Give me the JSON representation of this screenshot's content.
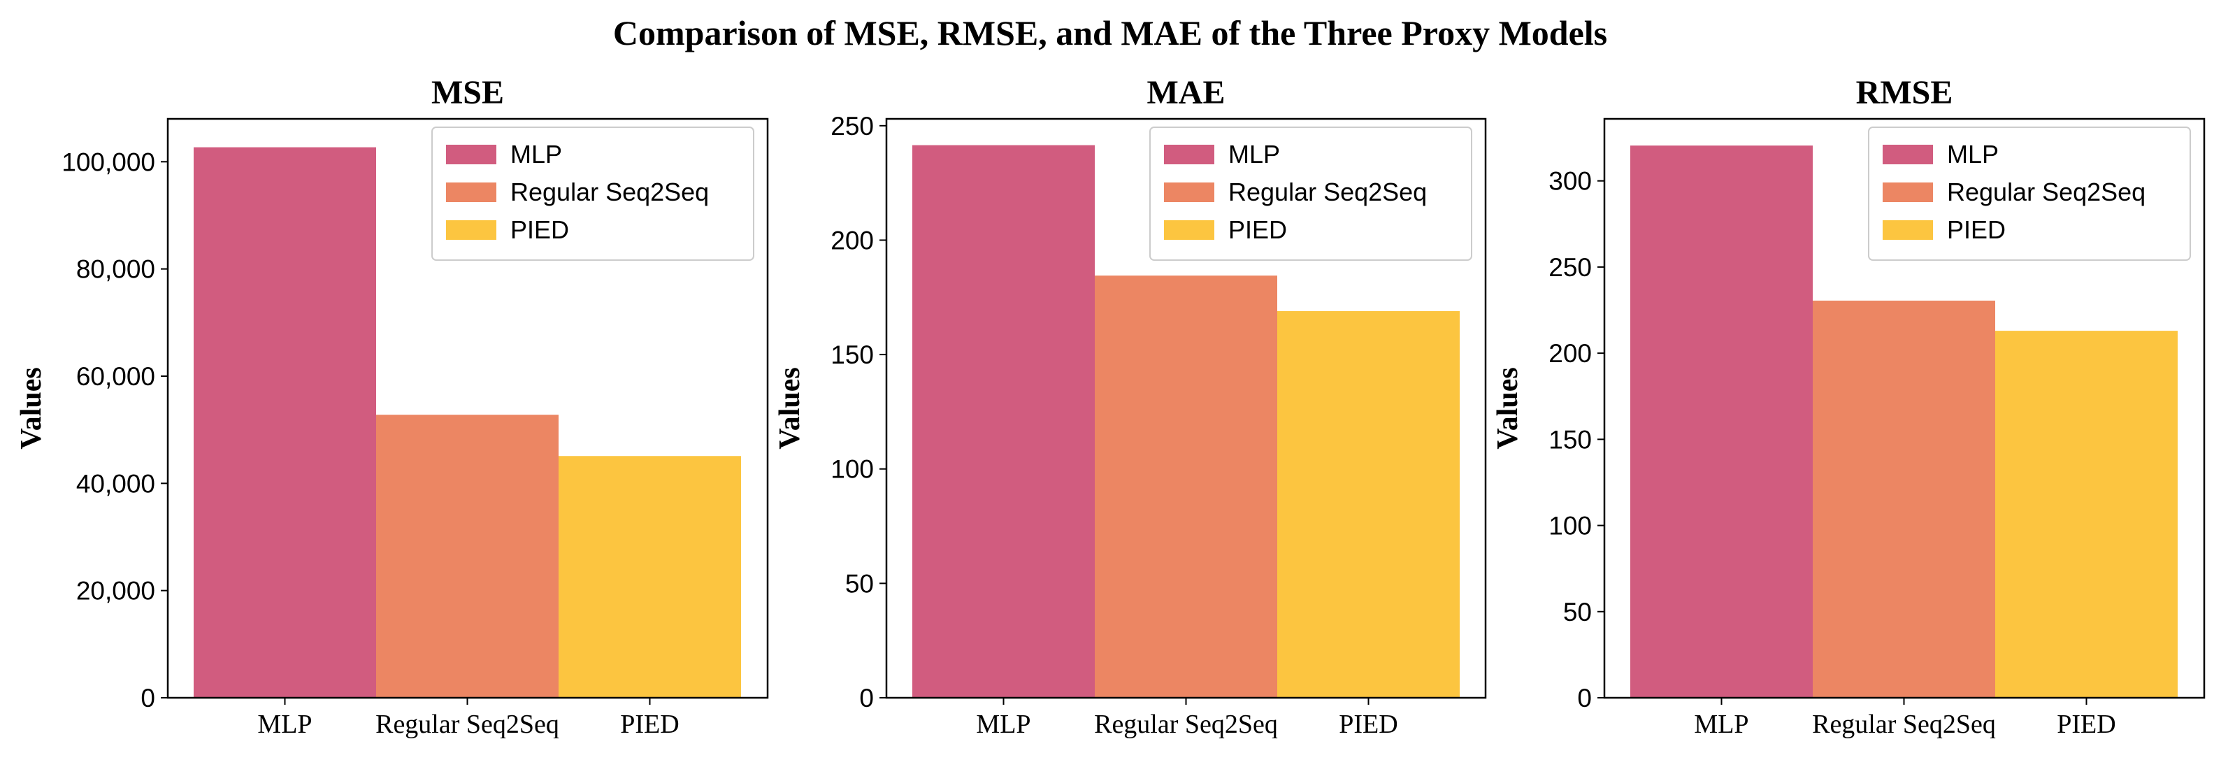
{
  "figure_title": "Comparison of MSE, RMSE, and MAE of the Three Proxy Models",
  "colors": {
    "MLP": "#d15c7f",
    "Regular Seq2Seq": "#ec8663",
    "PIED": "#fcc540"
  },
  "chart_data": [
    {
      "type": "bar",
      "title": "MSE",
      "xlabel": "",
      "ylabel": "Values",
      "categories": [
        "MLP",
        "Regular Seq2Seq",
        "PIED"
      ],
      "values": [
        102700,
        52800,
        45100
      ],
      "ylim": [
        0,
        108000
      ],
      "yticks": [
        0,
        20000,
        40000,
        60000,
        80000,
        100000
      ],
      "ytick_labels": [
        "0",
        "20,000",
        "40,000",
        "60,000",
        "80,000",
        "100,000"
      ],
      "legend": [
        "MLP",
        "Regular Seq2Seq",
        "PIED"
      ],
      "legend_loc": "upper right",
      "grid": false
    },
    {
      "type": "bar",
      "title": "MAE",
      "xlabel": "",
      "ylabel": "Values",
      "categories": [
        "MLP",
        "Regular Seq2Seq",
        "PIED"
      ],
      "values": [
        241.5,
        184.5,
        169
      ],
      "ylim": [
        0,
        253
      ],
      "yticks": [
        0,
        50,
        100,
        150,
        200,
        250
      ],
      "ytick_labels": [
        "0",
        "50",
        "100",
        "150",
        "200",
        "250"
      ],
      "legend": [
        "MLP",
        "Regular Seq2Seq",
        "PIED"
      ],
      "legend_loc": "upper right",
      "grid": false
    },
    {
      "type": "bar",
      "title": "RMSE",
      "xlabel": "",
      "ylabel": "Values",
      "categories": [
        "MLP",
        "Regular Seq2Seq",
        "PIED"
      ],
      "values": [
        320.5,
        230.5,
        213
      ],
      "ylim": [
        0,
        336
      ],
      "yticks": [
        0,
        50,
        100,
        150,
        200,
        250,
        300
      ],
      "ytick_labels": [
        "0",
        "50",
        "100",
        "150",
        "200",
        "250",
        "300"
      ],
      "legend": [
        "MLP",
        "Regular Seq2Seq",
        "PIED"
      ],
      "legend_loc": "upper right",
      "grid": false
    }
  ]
}
